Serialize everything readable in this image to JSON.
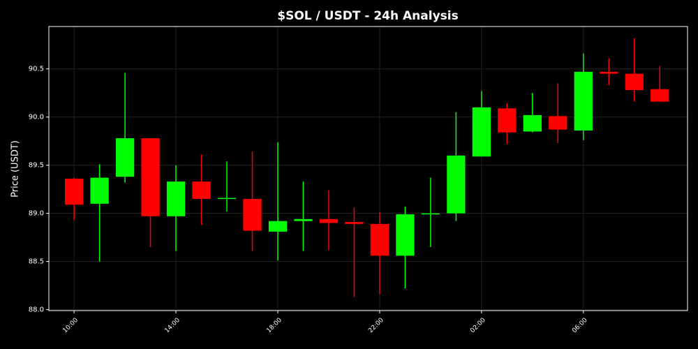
{
  "chart_data": {
    "type": "candlestick",
    "title": "$SOL / USDT - 24h Analysis",
    "y_label": "Price (USDT)",
    "categories": [
      "10:00",
      null,
      null,
      null,
      "14:00",
      null,
      null,
      null,
      "18:00",
      null,
      null,
      null,
      "22:00",
      null,
      null,
      null,
      "02:00",
      null,
      null,
      null,
      "06:00",
      null,
      null,
      null
    ],
    "open": [
      89.36,
      89.1,
      89.38,
      89.78,
      88.97,
      89.33,
      89.15,
      89.15,
      88.81,
      88.92,
      88.94,
      88.91,
      88.89,
      88.56,
      88.99,
      89.0,
      89.59,
      90.09,
      89.85,
      90.01,
      89.86,
      90.47,
      90.45,
      90.29
    ],
    "high": [
      89.37,
      89.51,
      90.46,
      89.78,
      89.5,
      89.61,
      89.54,
      89.64,
      89.74,
      89.33,
      89.24,
      89.06,
      89.01,
      89.07,
      89.37,
      90.05,
      90.27,
      90.14,
      90.25,
      90.35,
      90.66,
      90.61,
      90.82,
      90.53
    ],
    "low": [
      88.93,
      88.5,
      89.32,
      88.65,
      88.61,
      88.88,
      89.02,
      88.61,
      88.51,
      88.61,
      88.62,
      88.13,
      88.16,
      88.22,
      88.65,
      88.92,
      89.59,
      89.72,
      89.84,
      89.73,
      89.76,
      90.33,
      90.16,
      90.16
    ],
    "close": [
      89.09,
      89.37,
      89.78,
      88.97,
      89.33,
      89.15,
      89.16,
      88.82,
      88.92,
      88.94,
      88.9,
      88.89,
      88.56,
      88.99,
      89.0,
      89.6,
      90.1,
      89.84,
      90.02,
      89.87,
      90.47,
      90.45,
      90.28,
      90.16
    ],
    "up_color": "#00ff00",
    "down_color": "#ff0000",
    "ylim": [
      87.99,
      90.94
    ],
    "yticks": [
      {
        "value": 88.0,
        "label": "88.0"
      },
      88.5,
      {
        "value": 89.0,
        "label": "89.0"
      },
      89.5,
      {
        "value": 90.0,
        "label": "90.0"
      },
      90.5
    ],
    "grid": true
  }
}
